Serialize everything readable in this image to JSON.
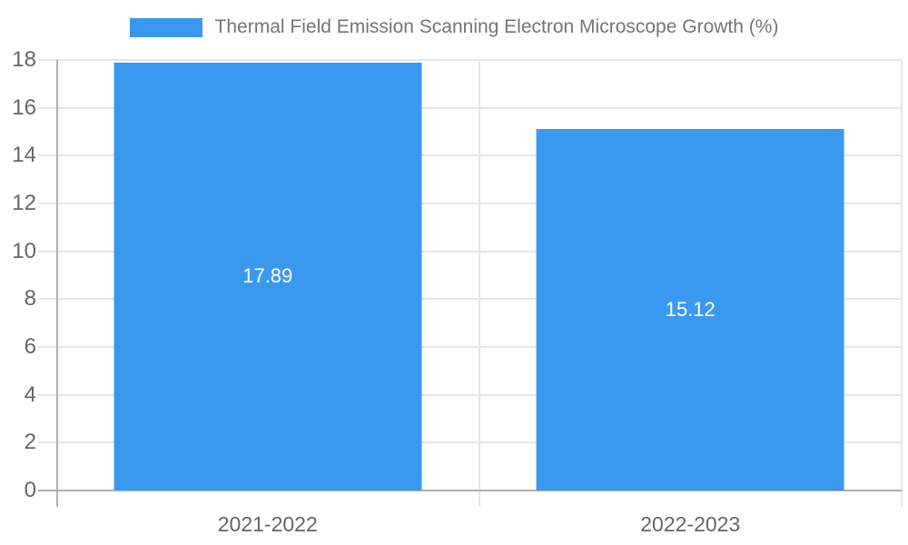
{
  "legend": {
    "label": "Thermal Field Emission Scanning Electron Microscope Growth (%)"
  },
  "chart_data": {
    "type": "bar",
    "title": "",
    "xlabel": "",
    "ylabel": "",
    "categories": [
      "2021-2022",
      "2022-2023"
    ],
    "series": [
      {
        "name": "Thermal Field Emission Scanning Electron Microscope Growth (%)",
        "values": [
          17.89,
          15.12
        ],
        "value_labels": [
          "17.89",
          "15.12"
        ]
      }
    ],
    "ylim": [
      0,
      18
    ],
    "yticks": [
      0,
      2,
      4,
      6,
      8,
      10,
      12,
      14,
      16,
      18
    ],
    "grid": true,
    "legend_position": "top",
    "bar_width_fraction": 0.728,
    "colors": {
      "bar": "#3a99ee",
      "gridline": "#e6e6e6",
      "axis_line": "#b0b0b0",
      "tick_label": "#666666",
      "legend_text": "#757575",
      "bar_value_text": "#ffffff",
      "background": "#ffffff"
    }
  }
}
